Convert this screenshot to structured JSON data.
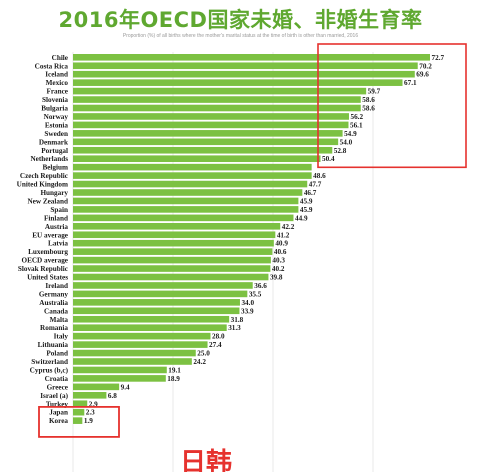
{
  "title": "2016年OECD国家未婚、非婚生育率",
  "subtitle": "Proportion (%) of all births where the mother's marital status at the time of birth is other than married, 2016",
  "callout": "日韩",
  "colors": {
    "bar": "#7cc142",
    "callout": "#e6322e",
    "title": "#5fa830"
  },
  "chart_data": {
    "type": "bar",
    "orientation": "horizontal",
    "title": "2016年OECD国家未婚、非婚生育率",
    "subtitle": "Proportion (%) of all births where the mother's marital status at the time of birth is other than married, 2016",
    "xlabel": "",
    "ylabel": "",
    "xlim": [
      0,
      75
    ],
    "grid": true,
    "categories": [
      "Chile",
      "Costa Rica",
      "Iceland",
      "Mexico",
      "France",
      "Slovenia",
      "Bulgaria",
      "Norway",
      "Estonia",
      "Sweden",
      "Denmark",
      "Portugal",
      "Netherlands",
      "Belgium",
      "Czech Republic",
      "United Kingdom",
      "Hungary",
      "New Zealand",
      "Spain",
      "Finland",
      "Austria",
      "EU average",
      "Latvia",
      "Luxembourg",
      "OECD average",
      "Slovak Republic",
      "United States",
      "Ireland",
      "Germany",
      "Australia",
      "Canada",
      "Malta",
      "Romania",
      "Italy",
      "Lithuania",
      "Poland",
      "Switzerland",
      "Cyprus (b,c)",
      "Croatia",
      "Greece",
      "Israel (a)",
      "Turkey",
      "Japan",
      "Korea"
    ],
    "values": [
      72.7,
      70.2,
      69.6,
      67.1,
      59.7,
      58.6,
      58.6,
      56.2,
      56.1,
      54.9,
      54.0,
      52.8,
      50.4,
      48.6,
      48.6,
      47.7,
      46.7,
      45.9,
      45.9,
      44.9,
      42.2,
      41.2,
      40.9,
      40.6,
      40.3,
      40.2,
      39.8,
      36.6,
      35.5,
      34.0,
      33.9,
      31.8,
      31.3,
      28.0,
      27.4,
      25.0,
      24.2,
      19.1,
      18.9,
      9.4,
      6.8,
      2.9,
      2.3,
      1.9
    ],
    "value_labels": [
      "72.7",
      "70.2",
      "69.6",
      "67.1",
      "59.7",
      "58.6",
      "58.6",
      "56.2",
      "56.1",
      "54.9",
      "54.0",
      "52.8",
      "50.4",
      "",
      "48.6",
      "47.7",
      "46.7",
      "45.9",
      "45.9",
      "44.9",
      "42.2",
      "41.2",
      "40.9",
      "40.6",
      "40.3",
      "40.2",
      "39.8",
      "36.6",
      "35.5",
      "34.0",
      "33.9",
      "31.8",
      "31.3",
      "28.0",
      "27.4",
      "25.0",
      "24.2",
      "19.1",
      "18.9",
      "9.4",
      "6.8",
      "2.9",
      "2.3",
      "1.9"
    ]
  }
}
